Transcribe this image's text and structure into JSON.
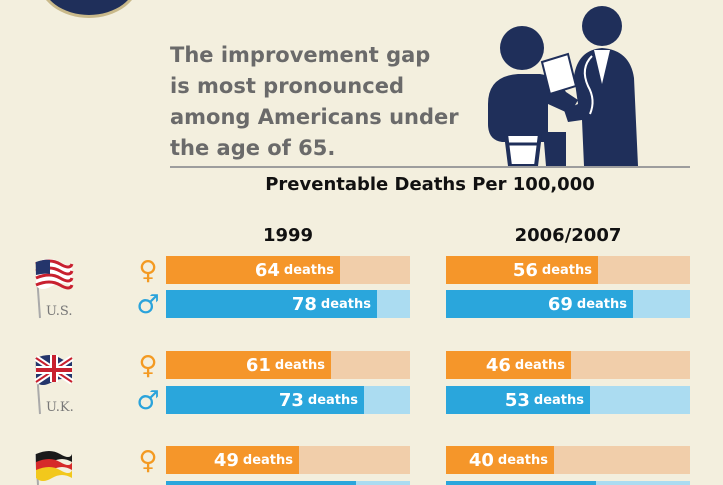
{
  "headline": {
    "lines": [
      "The improvement gap",
      "is most pronounced",
      "among Americans under",
      "the age of 65."
    ]
  },
  "chart_data": {
    "type": "bar",
    "title": "Preventable Deaths Per 100,000",
    "columns": [
      "1999",
      "2006/2007"
    ],
    "unit": "deaths",
    "scale_max": 90,
    "countries": [
      {
        "label": "U.S.",
        "flag": "usa-flag",
        "female": [
          64,
          56
        ],
        "male": [
          78,
          69
        ]
      },
      {
        "label": "U.K.",
        "flag": "uk-flag",
        "female": [
          61,
          46
        ],
        "male": [
          73,
          53
        ]
      },
      {
        "label": "",
        "flag": "germany-flag",
        "female": [
          49,
          40
        ],
        "male": [
          null,
          null
        ]
      }
    ]
  },
  "symbols": {
    "female": "♀",
    "male": "♂"
  },
  "colors": {
    "female_bar": "#f5962a",
    "female_track": "#f1ceaa",
    "male_bar": "#2aa6dc",
    "male_track": "#abdcf1",
    "background": "#f3efde"
  }
}
